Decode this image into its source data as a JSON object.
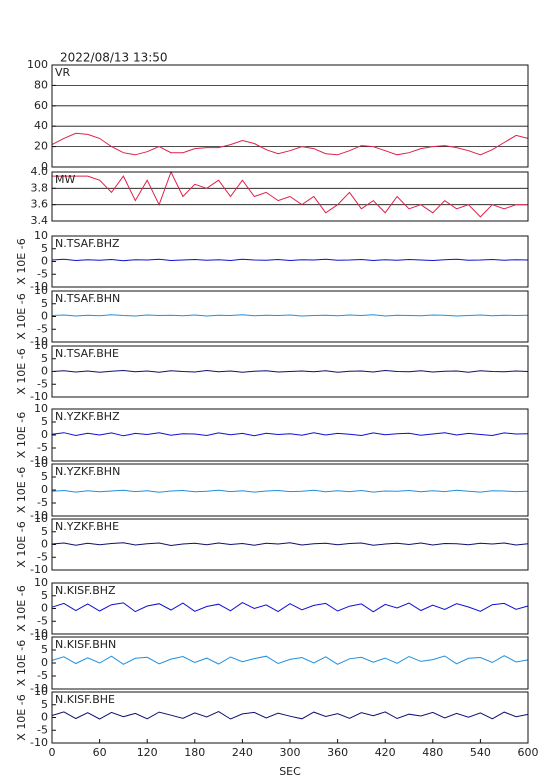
{
  "title": "2022/08/13  13:50",
  "chart_data": [
    {
      "type": "line",
      "title": "VR",
      "color": "#e0204a",
      "grid": true,
      "ylim": [
        0,
        100
      ],
      "yticks": [
        0,
        20,
        40,
        60,
        80,
        100
      ],
      "x": [
        0,
        15,
        30,
        45,
        60,
        75,
        90,
        105,
        120,
        135,
        150,
        165,
        180,
        195,
        210,
        225,
        240,
        255,
        270,
        285,
        300,
        315,
        330,
        345,
        360,
        375,
        390,
        405,
        420,
        435,
        450,
        465,
        480,
        495,
        510,
        525,
        540,
        555,
        570,
        585,
        600
      ],
      "values": [
        22,
        28,
        33,
        32,
        28,
        20,
        14,
        12,
        15,
        20,
        14,
        14,
        18,
        19,
        19,
        22,
        26,
        23,
        17,
        13,
        16,
        20,
        18,
        13,
        12,
        16,
        21,
        20,
        16,
        12,
        14,
        18,
        20,
        21,
        19,
        16,
        12,
        17,
        24,
        31,
        28
      ]
    },
    {
      "type": "line",
      "title": "MW",
      "color": "#e0204a",
      "grid": true,
      "ylim": [
        3.4,
        4.0
      ],
      "yticks": [
        3.4,
        3.6,
        3.8,
        {
          "value": 4.0,
          "label": "4.0"
        }
      ],
      "x": [
        0,
        15,
        30,
        45,
        60,
        75,
        90,
        105,
        120,
        135,
        150,
        165,
        180,
        195,
        210,
        225,
        240,
        255,
        270,
        285,
        300,
        315,
        330,
        345,
        360,
        375,
        390,
        405,
        420,
        435,
        450,
        465,
        480,
        495,
        510,
        525,
        540,
        555,
        570,
        585,
        600
      ],
      "values": [
        3.95,
        3.95,
        3.95,
        3.95,
        3.9,
        3.75,
        3.95,
        3.65,
        3.9,
        3.6,
        4.0,
        3.7,
        3.85,
        3.8,
        3.9,
        3.7,
        3.9,
        3.7,
        3.75,
        3.65,
        3.7,
        3.6,
        3.7,
        3.5,
        3.6,
        3.75,
        3.55,
        3.65,
        3.5,
        3.7,
        3.55,
        3.6,
        3.5,
        3.65,
        3.55,
        3.6,
        3.45,
        3.6,
        3.55,
        3.6,
        3.6
      ]
    },
    {
      "type": "line",
      "title": "N.TSAF.BHZ",
      "ylabel": "X 10E -6",
      "color": "#1010d0",
      "ylim": [
        -10,
        10
      ],
      "yticks": [
        -10,
        -5,
        0,
        5,
        10
      ],
      "x": [
        0,
        15,
        30,
        45,
        60,
        75,
        90,
        105,
        120,
        135,
        150,
        165,
        180,
        195,
        210,
        225,
        240,
        255,
        270,
        285,
        300,
        315,
        330,
        345,
        360,
        375,
        390,
        405,
        420,
        435,
        450,
        465,
        480,
        495,
        510,
        525,
        540,
        555,
        570,
        585,
        600
      ],
      "values": [
        0.6,
        0.9,
        0.4,
        0.7,
        0.5,
        0.8,
        0.3,
        0.7,
        0.6,
        0.9,
        0.4,
        0.6,
        0.8,
        0.5,
        0.7,
        0.4,
        0.9,
        0.6,
        0.5,
        0.8,
        0.4,
        0.7,
        0.6,
        0.9,
        0.5,
        0.6,
        0.8,
        0.4,
        0.7,
        0.5,
        0.8,
        0.6,
        0.4,
        0.7,
        0.9,
        0.5,
        0.6,
        0.8,
        0.5,
        0.7,
        0.6
      ]
    },
    {
      "type": "line",
      "title": "N.TSAF.BHN",
      "ylabel": "X 10E -6",
      "color": "#2090e0",
      "ylim": [
        -10,
        10
      ],
      "yticks": [
        -10,
        -5,
        0,
        5,
        10
      ],
      "x": [
        0,
        15,
        30,
        45,
        60,
        75,
        90,
        105,
        120,
        135,
        150,
        165,
        180,
        195,
        210,
        225,
        240,
        255,
        270,
        285,
        300,
        315,
        330,
        345,
        360,
        375,
        390,
        405,
        420,
        435,
        450,
        465,
        480,
        495,
        510,
        525,
        540,
        555,
        570,
        585,
        600
      ],
      "values": [
        0.4,
        0.6,
        0.2,
        0.5,
        0.3,
        0.7,
        0.4,
        0.2,
        0.6,
        0.4,
        0.5,
        0.3,
        0.6,
        0.2,
        0.5,
        0.4,
        0.7,
        0.3,
        0.5,
        0.4,
        0.6,
        0.2,
        0.4,
        0.5,
        0.3,
        0.6,
        0.4,
        0.7,
        0.2,
        0.5,
        0.4,
        0.3,
        0.6,
        0.5,
        0.2,
        0.4,
        0.6,
        0.3,
        0.5,
        0.4,
        0.5
      ]
    },
    {
      "type": "line",
      "title": "N.TSAF.BHE",
      "ylabel": "X 10E -6",
      "color": "#101070",
      "ylim": [
        -10,
        10
      ],
      "yticks": [
        -10,
        -5,
        0,
        5,
        10
      ],
      "x": [
        0,
        15,
        30,
        45,
        60,
        75,
        90,
        105,
        120,
        135,
        150,
        165,
        180,
        195,
        210,
        225,
        240,
        255,
        270,
        285,
        300,
        315,
        330,
        345,
        360,
        375,
        390,
        405,
        420,
        435,
        450,
        465,
        480,
        495,
        510,
        525,
        540,
        555,
        570,
        585,
        600
      ],
      "values": [
        0,
        0.3,
        -0.2,
        0.2,
        -0.3,
        0.1,
        0.4,
        -0.1,
        0.2,
        -0.3,
        0.3,
        0,
        -0.2,
        0.4,
        -0.1,
        0.2,
        -0.3,
        0.1,
        0.3,
        -0.2,
        0,
        0.2,
        -0.1,
        0.3,
        -0.3,
        0.1,
        0.2,
        -0.2,
        0.4,
        0,
        -0.1,
        0.3,
        -0.2,
        0.1,
        0.2,
        -0.3,
        0.3,
        0,
        -0.1,
        0.2,
        0
      ]
    },
    {
      "type": "line",
      "title": "N.YZKF.BHZ",
      "ylabel": "X 10E -6",
      "color": "#1010d0",
      "ylim": [
        -10,
        10
      ],
      "yticks": [
        -10,
        -5,
        0,
        5,
        10
      ],
      "x": [
        0,
        15,
        30,
        45,
        60,
        75,
        90,
        105,
        120,
        135,
        150,
        165,
        180,
        195,
        210,
        225,
        240,
        255,
        270,
        285,
        300,
        315,
        330,
        345,
        360,
        375,
        390,
        405,
        420,
        435,
        450,
        465,
        480,
        495,
        510,
        525,
        540,
        555,
        570,
        585,
        600
      ],
      "values": [
        0.3,
        0.9,
        -0.2,
        0.7,
        0,
        0.8,
        -0.3,
        0.6,
        0.2,
        0.9,
        -0.1,
        0.5,
        0.4,
        -0.2,
        0.8,
        0.1,
        0.6,
        -0.3,
        0.7,
        0.2,
        0.5,
        -0.1,
        0.9,
        0,
        0.6,
        0.3,
        -0.2,
        0.8,
        0.1,
        0.5,
        0.7,
        -0.1,
        0.4,
        0.9,
        0,
        0.6,
        0.2,
        -0.2,
        0.8,
        0.4,
        0.5
      ]
    },
    {
      "type": "line",
      "title": "N.YZKF.BHN",
      "ylabel": "X 10E -6",
      "color": "#2090e0",
      "ylim": [
        -10,
        10
      ],
      "yticks": [
        -10,
        -5,
        0,
        5,
        10
      ],
      "x": [
        0,
        15,
        30,
        45,
        60,
        75,
        90,
        105,
        120,
        135,
        150,
        165,
        180,
        195,
        210,
        225,
        240,
        255,
        270,
        285,
        300,
        315,
        330,
        345,
        360,
        375,
        390,
        405,
        420,
        435,
        450,
        465,
        480,
        495,
        510,
        525,
        540,
        555,
        570,
        585,
        600
      ],
      "values": [
        -0.5,
        -0.2,
        -0.8,
        -0.3,
        -0.7,
        -0.4,
        -0.1,
        -0.6,
        -0.3,
        -0.9,
        -0.4,
        -0.2,
        -0.7,
        -0.5,
        -0.1,
        -0.6,
        -0.3,
        -0.8,
        -0.4,
        -0.2,
        -0.6,
        -0.5,
        -0.1,
        -0.7,
        -0.3,
        -0.6,
        -0.2,
        -0.8,
        -0.4,
        -0.5,
        -0.2,
        -0.7,
        -0.3,
        -0.6,
        -0.1,
        -0.5,
        -0.8,
        -0.3,
        -0.4,
        -0.6,
        -0.5
      ]
    },
    {
      "type": "line",
      "title": "N.YZKF.BHE",
      "ylabel": "X 10E -6",
      "color": "#101070",
      "ylim": [
        -10,
        10
      ],
      "yticks": [
        -10,
        -5,
        0,
        5,
        10
      ],
      "x": [
        0,
        15,
        30,
        45,
        60,
        75,
        90,
        105,
        120,
        135,
        150,
        165,
        180,
        195,
        210,
        225,
        240,
        255,
        270,
        285,
        300,
        315,
        330,
        345,
        360,
        375,
        390,
        405,
        420,
        435,
        450,
        465,
        480,
        495,
        510,
        525,
        540,
        555,
        570,
        585,
        600
      ],
      "values": [
        0.2,
        0.6,
        -0.3,
        0.5,
        -0.1,
        0.4,
        0.7,
        -0.2,
        0.3,
        0.6,
        -0.4,
        0.2,
        0.5,
        -0.1,
        0.6,
        0,
        0.4,
        -0.3,
        0.5,
        0.2,
        0.7,
        -0.2,
        0.3,
        0.5,
        -0.1,
        0.4,
        0.6,
        -0.3,
        0.2,
        0.5,
        0,
        0.6,
        -0.2,
        0.4,
        0.3,
        -0.1,
        0.5,
        0.2,
        0.6,
        -0.2,
        0.3
      ]
    },
    {
      "type": "line",
      "title": "N.KISF.BHZ",
      "ylabel": "X 10E -6",
      "color": "#1010d0",
      "ylim": [
        -10,
        10
      ],
      "yticks": [
        -10,
        -5,
        0,
        5,
        10
      ],
      "x": [
        0,
        15,
        30,
        45,
        60,
        75,
        90,
        105,
        120,
        135,
        150,
        165,
        180,
        195,
        210,
        225,
        240,
        255,
        270,
        285,
        300,
        315,
        330,
        345,
        360,
        375,
        390,
        405,
        420,
        435,
        450,
        465,
        480,
        495,
        510,
        525,
        540,
        555,
        570,
        585,
        600
      ],
      "values": [
        0.5,
        2,
        -0.8,
        1.8,
        -1,
        1.5,
        2.2,
        -1.2,
        1,
        1.9,
        -0.6,
        2.1,
        -1.1,
        0.8,
        1.7,
        -0.9,
        2.3,
        0,
        1.4,
        -1.2,
        1.9,
        -0.5,
        1.2,
        2,
        -1,
        0.9,
        1.8,
        -1.3,
        1.6,
        0.2,
        2.1,
        -0.8,
        1.3,
        -0.4,
        1.9,
        0.6,
        -1.1,
        1.5,
        2,
        -0.3,
        1
      ]
    },
    {
      "type": "line",
      "title": "N.KISF.BHN",
      "ylabel": "X 10E -6",
      "color": "#2090e0",
      "ylim": [
        -10,
        10
      ],
      "yticks": [
        -10,
        -5,
        0,
        5,
        10
      ],
      "x": [
        0,
        15,
        30,
        45,
        60,
        75,
        90,
        105,
        120,
        135,
        150,
        165,
        180,
        195,
        210,
        225,
        240,
        255,
        270,
        285,
        300,
        315,
        330,
        345,
        360,
        375,
        390,
        405,
        420,
        435,
        450,
        465,
        480,
        495,
        510,
        525,
        540,
        555,
        570,
        585,
        600
      ],
      "values": [
        1,
        2.4,
        -0.2,
        2,
        0,
        2.6,
        -0.5,
        1.8,
        2.2,
        -0.3,
        1.5,
        2.5,
        0.2,
        1.9,
        -0.4,
        2.3,
        0.5,
        1.7,
        2.6,
        -0.2,
        1.4,
        2.1,
        0,
        2.4,
        -0.5,
        1.6,
        2.2,
        0.3,
        1.9,
        -0.1,
        2.5,
        0.6,
        1.3,
        2.7,
        -0.3,
        1.8,
        2.1,
        0.2,
        2.8,
        0.4,
        1.2
      ]
    },
    {
      "type": "line",
      "title": "N.KISF.BHE",
      "ylabel": "X 10E -6",
      "color": "#101070",
      "ylim": [
        -10,
        10
      ],
      "yticks": [
        -10,
        -5,
        0,
        5,
        10
      ],
      "xlabel": "SEC",
      "xlim": [
        0,
        600
      ],
      "xticks": [
        0,
        60,
        120,
        180,
        240,
        300,
        360,
        420,
        480,
        540,
        600
      ],
      "x": [
        0,
        15,
        30,
        45,
        60,
        75,
        90,
        105,
        120,
        135,
        150,
        165,
        180,
        195,
        210,
        225,
        240,
        255,
        270,
        285,
        300,
        315,
        330,
        345,
        360,
        375,
        390,
        405,
        420,
        435,
        450,
        465,
        480,
        495,
        510,
        525,
        540,
        555,
        570,
        585,
        600
      ],
      "values": [
        0.8,
        2.2,
        -0.4,
        1.9,
        -0.6,
        2,
        0.3,
        1.6,
        -0.5,
        2.1,
        0.9,
        -0.3,
        1.8,
        0.2,
        2.3,
        -0.6,
        1.4,
        2,
        -0.2,
        1.7,
        0.5,
        -0.5,
        2.1,
        0.4,
        1.5,
        -0.3,
        1.9,
        0.7,
        2.2,
        -0.4,
        1.3,
        0.6,
        2,
        -0.2,
        1.6,
        0.1,
        1.8,
        -0.5,
        2.1,
        0.3,
        1.2
      ]
    }
  ]
}
